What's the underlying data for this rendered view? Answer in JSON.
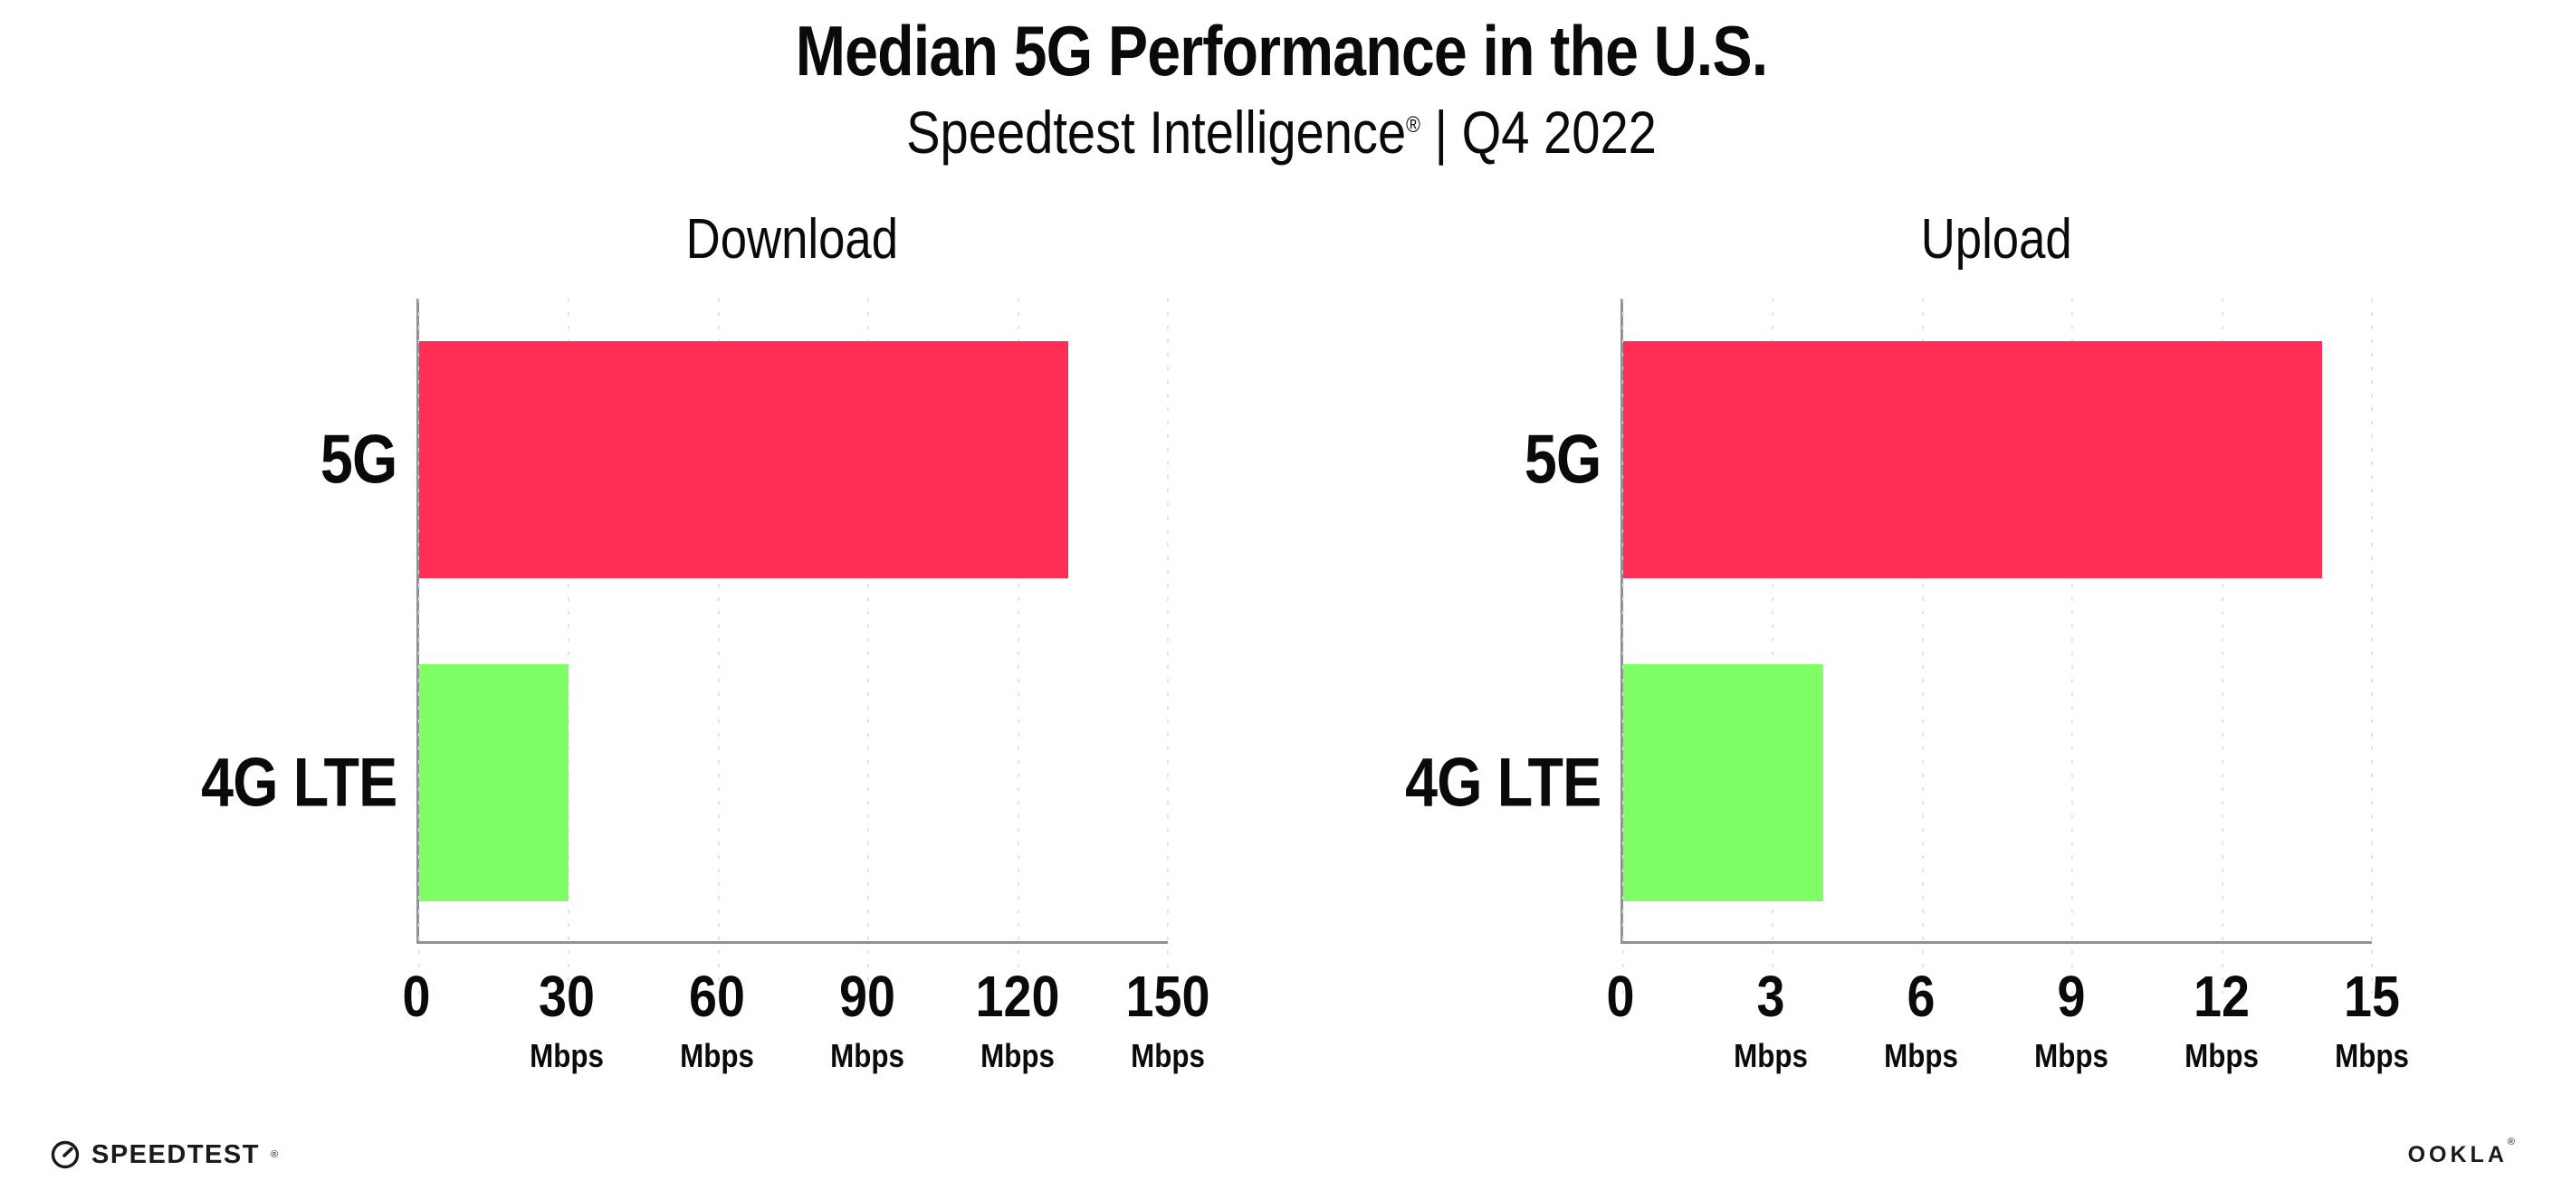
{
  "header": {
    "title": "Median 5G Performance in the U.S.",
    "subtitle_brand": "Speedtest Intelligence",
    "subtitle_reg": "®",
    "subtitle_rest": " | Q4 2022"
  },
  "chart_data": [
    {
      "type": "bar",
      "orientation": "horizontal",
      "title": "Download",
      "categories": [
        "5G",
        "4G LTE"
      ],
      "values": [
        130,
        30
      ],
      "unit": "Mbps",
      "xlabel": "",
      "ylabel": "",
      "xlim": [
        0,
        150
      ],
      "ticks": [
        0,
        30,
        60,
        90,
        120,
        150
      ],
      "bar_colors": [
        "#FF2E56",
        "#7FFE66"
      ],
      "grid": true,
      "legend": "none"
    },
    {
      "type": "bar",
      "orientation": "horizontal",
      "title": "Upload",
      "categories": [
        "5G",
        "4G LTE"
      ],
      "values": [
        14,
        4
      ],
      "unit": "Mbps",
      "xlabel": "",
      "ylabel": "",
      "xlim": [
        0,
        15
      ],
      "ticks": [
        0,
        3,
        6,
        9,
        12,
        15
      ],
      "bar_colors": [
        "#FF2E56",
        "#7FFE66"
      ],
      "grid": true,
      "legend": "none"
    }
  ],
  "colors": {
    "bar_5g": "#FF2E56",
    "bar_4g_lte": "#7FFE66",
    "axis": "#919197",
    "gridline": "#e2e2ee",
    "text": "#0a0a0a"
  },
  "footer": {
    "speedtest_label": "SPEEDTEST",
    "speedtest_mark": "®",
    "ookla_label": "OOKLA",
    "ookla_mark": "®"
  }
}
